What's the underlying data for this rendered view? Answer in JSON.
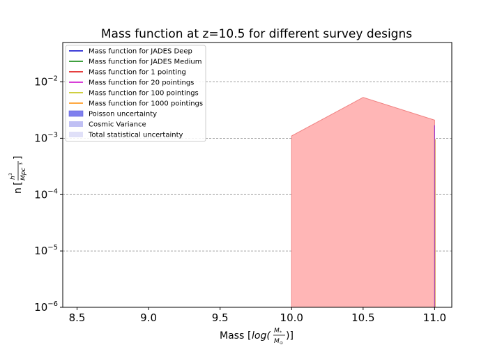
{
  "chart_data": {
    "type": "area",
    "title": "Mass function at z=10.5 for different survey designs",
    "xlabel": "Mass",
    "ylabel": "n",
    "xlim": [
      8.4,
      11.12
    ],
    "ylim": [
      1e-06,
      0.05
    ],
    "y_scale": "log",
    "grid": "horizontal dashed",
    "legend_placement": "top-left",
    "x_ticks": [
      {
        "value": 8.5,
        "label": "8.5"
      },
      {
        "value": 9.0,
        "label": "9.0"
      },
      {
        "value": 9.5,
        "label": "9.5"
      },
      {
        "value": 10.0,
        "label": "10.0"
      },
      {
        "value": 10.5,
        "label": "10.5"
      },
      {
        "value": 11.0,
        "label": "11.0"
      }
    ],
    "y_ticks": [
      {
        "value": 1e-06,
        "base": "10",
        "exp": "−6"
      },
      {
        "value": 1e-05,
        "base": "10",
        "exp": "−5"
      },
      {
        "value": 0.0001,
        "base": "10",
        "exp": "−4"
      },
      {
        "value": 0.001,
        "base": "10",
        "exp": "−3"
      },
      {
        "value": 0.01,
        "base": "10",
        "exp": "−2"
      }
    ],
    "series": [
      {
        "name": "Mass function for JADES Deep",
        "kind": "line",
        "color": "#0000cc"
      },
      {
        "name": "Mass function for JADES Medium",
        "kind": "line",
        "color": "#008000"
      },
      {
        "name": "Mass function for 1 pointing",
        "kind": "line",
        "color": "#dd0000"
      },
      {
        "name": "Mass function for 20 pointings",
        "kind": "line",
        "color": "#cc00cc"
      },
      {
        "name": "Mass function for 100 pointings",
        "kind": "line",
        "color": "#bfbf00"
      },
      {
        "name": "Mass function for 1000 pointings",
        "kind": "line",
        "color": "#ff8c00"
      },
      {
        "name": "Poisson uncertainty",
        "kind": "patch",
        "color": "#8080ee"
      },
      {
        "name": "Cosmic Variance",
        "kind": "patch",
        "color": "#c0c0f4"
      },
      {
        "name": "Total statistical uncertainty",
        "kind": "patch",
        "color": "#e0e0f8"
      }
    ],
    "filled_region": {
      "color": "#ffb6b6",
      "edge_color": "#f08080",
      "x": [
        10.0,
        10.5,
        11.0
      ],
      "upper": [
        0.0011,
        0.0053,
        0.0021
      ],
      "lower": [
        1e-06,
        1e-06,
        1e-06
      ]
    },
    "edge_line": {
      "x": 11.0,
      "y_top": 0.0017,
      "color": "#9933cc"
    }
  }
}
